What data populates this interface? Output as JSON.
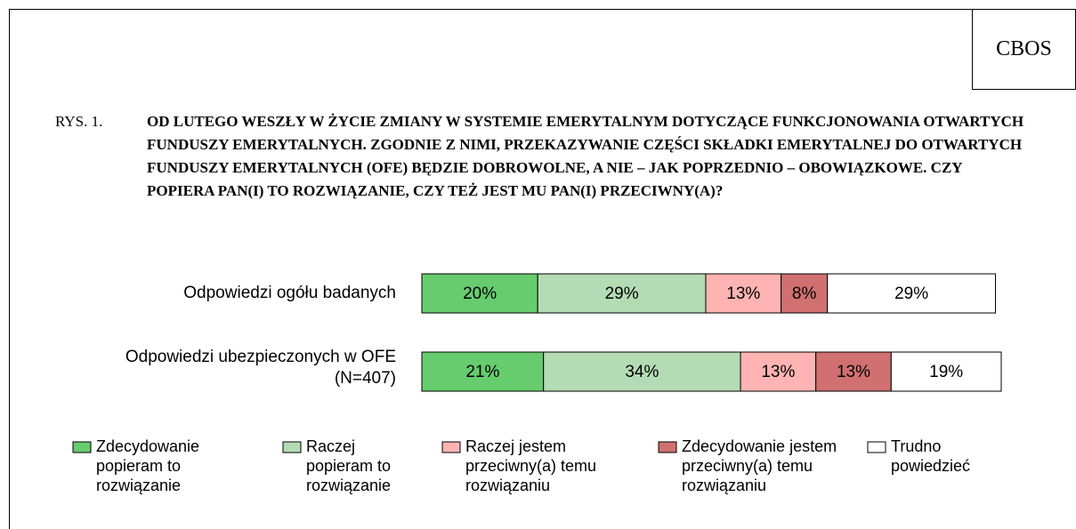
{
  "chart_data": {
    "type": "stacked_bar_horizontal",
    "source": "CBOS",
    "figure_label": "RYS. 1.",
    "title": "OD LUTEGO WESZŁY W ŻYCIE ZMIANY W SYSTEMIE EMERYTALNYM DOTYCZĄCE FUNKCJONOWANIA OTWARTYCH FUNDUSZY EMERYTALNYCH. ZGODNIE Z NIMI, PRZEKAZYWANIE CZĘŚCI SKŁADKI EMERYTALNEJ DO OTWARTYCH FUNDUSZY EMERYTALNYCH (OFE) BĘDZIE DOBROWOLNE, A NIE – JAK POPRZEDNIO – OBOWIĄZKOWE. CZY POPIERA PAN(I) TO ROZWIĄZANIE, CZY TEŻ JEST MU PAN(I) PRZECIWNY(A)?",
    "categories": [
      "Odpowiedzi ogółu badanych",
      "Odpowiedzi ubezpieczonych w OFE (N=407)"
    ],
    "series": [
      {
        "name": "Zdecydowanie popieram to rozwiązanie",
        "color": "#66cc6e",
        "values": [
          20,
          21
        ],
        "value_labels": [
          "20%",
          "21%"
        ]
      },
      {
        "name": "Raczej popieram to rozwiązanie",
        "color": "#b3dcb4",
        "values": [
          29,
          34
        ],
        "value_labels": [
          "29%",
          "34%"
        ]
      },
      {
        "name": "Raczej jestem przeciwny(a) temu rozwiązaniu",
        "color": "#ffb3b3",
        "values": [
          13,
          13
        ],
        "value_labels": [
          "13%",
          "13%"
        ]
      },
      {
        "name": "Zdecydowanie jestem przeciwny(a) temu rozwiązaniu",
        "color": "#d07070",
        "values": [
          8,
          13
        ],
        "value_labels": [
          "8%",
          "13%"
        ]
      },
      {
        "name": "Trudno powiedzieć",
        "color": "#ffffff",
        "values": [
          29,
          19
        ],
        "value_labels": [
          "29%",
          "19%"
        ]
      }
    ],
    "xlim": [
      0,
      100
    ]
  }
}
